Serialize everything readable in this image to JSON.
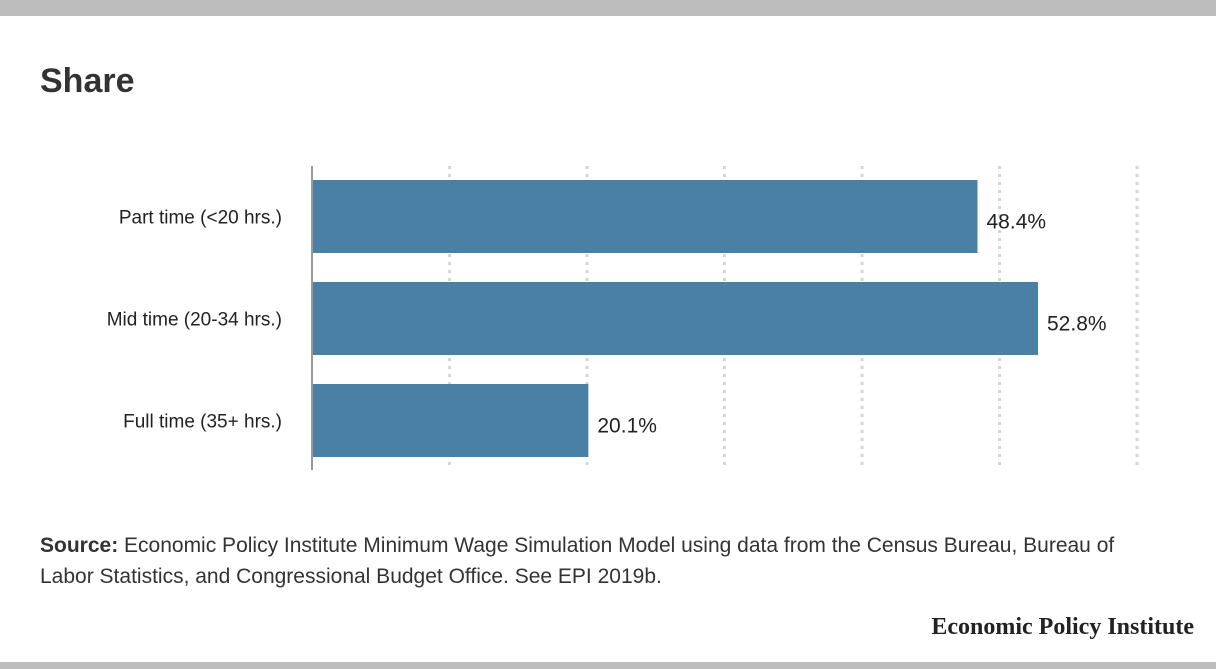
{
  "title": "Share",
  "chart_data": {
    "type": "bar",
    "orientation": "horizontal",
    "categories": [
      "Part time (<20 hrs.)",
      "Mid time (20-34 hrs.)",
      "Full time (35+ hrs.)"
    ],
    "values": [
      48.4,
      52.8,
      20.1
    ],
    "value_labels": [
      "48.4%",
      "52.8%",
      "20.1%"
    ],
    "xlim": [
      0,
      60
    ],
    "grid": true,
    "bar_color": "#4a80a3",
    "title": "Share"
  },
  "source": {
    "label": "Source:",
    "text": " Economic Policy Institute Minimum Wage Simulation Model using data from the Census Bureau, Bureau of Labor Statistics, and Congressional Budget Office. See EPI 2019b."
  },
  "logo_text": "Economic Policy Institute"
}
